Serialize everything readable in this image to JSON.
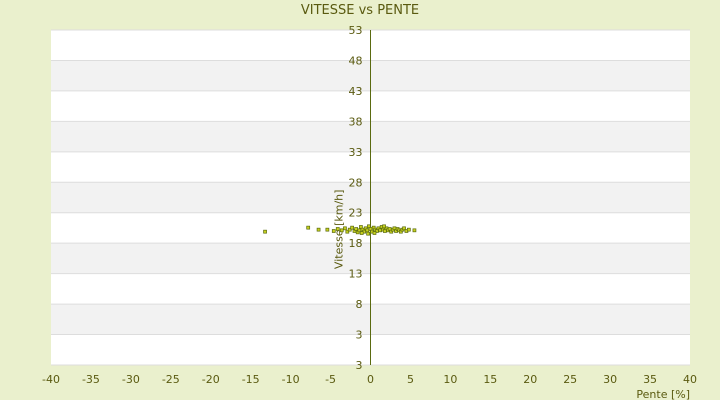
{
  "colors": {
    "page_background": "#eaf0cd",
    "plot_band_light": "#ffffff",
    "plot_band_dark": "#f2f2f2",
    "gridline": "#dddddd",
    "axis_line": "#5a6a10",
    "text": "#5a5a10",
    "marker_fill": "#c8d21e",
    "marker_stroke": "#5a6a10"
  },
  "chart_data": {
    "type": "scatter",
    "title": "VITESSE vs PENTE",
    "xlabel": "Pente [%]",
    "ylabel": "Vitesse [km/h]",
    "xlim": [
      -40,
      40
    ],
    "ylim": [
      3,
      53
    ],
    "x_ticks": [
      -40,
      -35,
      -30,
      -25,
      -20,
      -15,
      -10,
      -5,
      0,
      5,
      10,
      15,
      20,
      25,
      30,
      35,
      40
    ],
    "y_tick_labels": [
      "53",
      "48",
      "43",
      "38",
      "33",
      "28",
      "23",
      "18",
      "13",
      "8",
      "3",
      "3"
    ],
    "grid": true,
    "legend": "none",
    "series": [
      {
        "points": [
          [
            -13.2,
            22.9
          ],
          [
            -7.8,
            23.5
          ],
          [
            -6.5,
            23.2
          ],
          [
            -5.4,
            23.2
          ],
          [
            -4.6,
            23.0
          ],
          [
            -4.1,
            23.3
          ],
          [
            -3.6,
            23.1
          ],
          [
            -3.2,
            23.4
          ],
          [
            -2.9,
            22.9
          ],
          [
            -2.6,
            23.2
          ],
          [
            -2.3,
            23.5
          ],
          [
            -2.0,
            23.0
          ],
          [
            -1.8,
            23.3
          ],
          [
            -1.6,
            22.8
          ],
          [
            -1.4,
            23.1
          ],
          [
            -1.2,
            23.6
          ],
          [
            -1.0,
            23.2
          ],
          [
            -0.8,
            22.9
          ],
          [
            -0.6,
            23.4
          ],
          [
            -0.4,
            23.1
          ],
          [
            -0.2,
            23.7
          ],
          [
            0.0,
            23.3
          ],
          [
            0.2,
            22.9
          ],
          [
            0.4,
            23.5
          ],
          [
            0.6,
            23.2
          ],
          [
            0.8,
            23.0
          ],
          [
            1.0,
            23.4
          ],
          [
            1.2,
            23.1
          ],
          [
            1.4,
            23.6
          ],
          [
            1.6,
            23.2
          ],
          [
            1.8,
            23.0
          ],
          [
            2.0,
            23.4
          ],
          [
            2.2,
            23.1
          ],
          [
            2.4,
            23.3
          ],
          [
            2.6,
            22.9
          ],
          [
            2.8,
            23.2
          ],
          [
            3.0,
            23.4
          ],
          [
            3.2,
            23.0
          ],
          [
            3.4,
            23.3
          ],
          [
            3.6,
            23.1
          ],
          [
            3.8,
            22.9
          ],
          [
            4.0,
            23.2
          ],
          [
            4.2,
            23.4
          ],
          [
            4.5,
            23.0
          ],
          [
            4.8,
            23.2
          ],
          [
            5.5,
            23.1
          ],
          [
            -1.1,
            22.7
          ],
          [
            0.5,
            22.7
          ],
          [
            1.7,
            23.7
          ],
          [
            -0.3,
            22.6
          ]
        ]
      }
    ]
  }
}
